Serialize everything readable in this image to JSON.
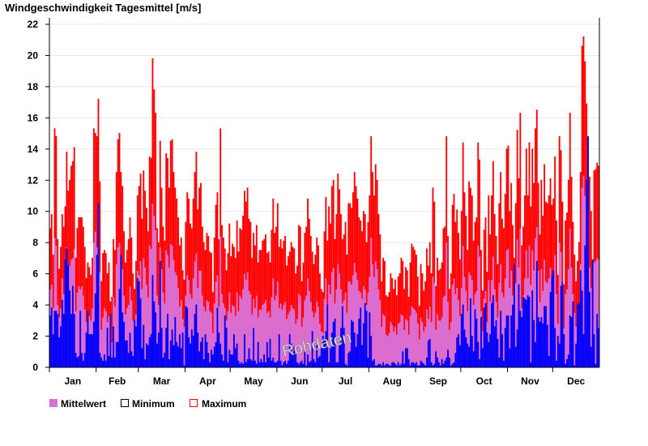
{
  "chart_data": {
    "type": "bar",
    "title": "Windgeschwindigkeit Tagesmittel [m/s]",
    "xlabel": "",
    "ylabel": "m/s",
    "ylim": [
      0,
      22
    ],
    "yticks": [
      "0",
      "2",
      "4",
      "6",
      "8",
      "10",
      "12",
      "14",
      "16",
      "18",
      "20",
      "22"
    ],
    "grid": true,
    "months": [
      "Jan",
      "Feb",
      "Mar",
      "Apr",
      "May",
      "Jun",
      "Jul",
      "Aug",
      "Sep",
      "Oct",
      "Nov",
      "Dec"
    ],
    "month_days": [
      31,
      28,
      31,
      30,
      31,
      30,
      31,
      31,
      30,
      31,
      30,
      31
    ],
    "watermark": "Rohdaten",
    "legend_position": "bottom-left",
    "colors": {
      "mean": "#da70d6",
      "min": "#0000ff",
      "max": "#ff0000",
      "min_legend": "#000000"
    },
    "series": [
      {
        "name": "Maximum",
        "key": "max",
        "values": [
          8.9,
          9.8,
          7.2,
          15.3,
          14.8,
          8.2,
          6.3,
          7.7,
          9.8,
          9.0,
          10.3,
          13.8,
          11.3,
          12.0,
          12.9,
          13.2,
          14.1,
          7.0,
          8.9,
          9.6,
          9.6,
          9.6,
          9.0,
          7.7,
          5.7,
          6.7,
          6.4,
          5.9,
          7.0,
          15.3,
          15.0,
          14.8,
          17.2,
          11.9,
          5.5,
          7.3,
          7.5,
          7.3,
          6.0,
          6.7,
          4.2,
          4.5,
          8.2,
          7.5,
          12.5,
          14.6,
          15.0,
          12.5,
          11.6,
          8.7,
          6.7,
          7.5,
          8.2,
          9.6,
          8.3,
          6.0,
          5.0,
          6.8,
          11.0,
          11.6,
          12.4,
          9.5,
          12.6,
          11.3,
          10.2,
          8.7,
          13.5,
          13.4,
          19.8,
          17.8,
          16.3,
          8.9,
          8.0,
          14.5,
          11.5,
          9.0,
          8.1,
          13.7,
          13.4,
          11.5,
          14.5,
          14.6,
          12.5,
          11.5,
          10.8,
          9.6,
          7.8,
          8.3,
          6.2,
          5.6,
          9.3,
          11.2,
          10.8,
          9.2,
          8.9,
          10.8,
          12.5,
          13.8,
          10.1,
          11.5,
          11.8,
          9.0,
          8.0,
          7.5,
          8.6,
          8.4,
          7.4,
          7.3,
          4.8,
          8.3,
          10.4,
          11.2,
          8.2,
          15.3,
          9.1,
          8.3,
          7.6,
          6.2,
          7.3,
          9.2,
          7.1,
          7.9,
          7.7,
          7.0,
          9.4,
          7.4,
          8.9,
          8.8,
          9.7,
          11.3,
          10.6,
          11.5,
          9.5,
          9.3,
          7.0,
          8.6,
          7.8,
          9.1,
          6.7,
          7.5,
          7.5,
          8.1,
          8.2,
          8.5,
          7.3,
          7.4,
          6.7,
          8.8,
          10.8,
          8.6,
          9.0,
          10.5,
          7.7,
          8.2,
          7.6,
          8.1,
          8.4,
          6.5,
          7.1,
          7.4,
          8.0,
          7.7,
          7.6,
          6.0,
          6.5,
          9.1,
          9.0,
          5.5,
          6.7,
          8.6,
          9.0,
          10.8,
          9.5,
          8.4,
          7.4,
          6.6,
          7.2,
          8.3,
          7.8,
          6.0,
          5.0,
          4.8,
          8.7,
          10.9,
          8.1,
          10.3,
          9.2,
          11.6,
          12.0,
          8.2,
          9.8,
          12.4,
          11.4,
          9.8,
          8.2,
          8.5,
          9.3,
          7.2,
          10.5,
          10.5,
          10.2,
          11.2,
          12.5,
          11.6,
          10.8,
          9.6,
          9.4,
          8.7,
          10.0,
          9.8,
          8.0,
          9.3,
          11.0,
          14.8,
          12.5,
          11.0,
          13.0,
          12.0,
          9.8,
          8.5,
          5.5,
          7.0,
          6.8,
          4.6,
          4.5,
          4.8,
          6.0,
          5.7,
          5.0,
          5.6,
          4.6,
          5.8,
          6.0,
          7.0,
          6.8,
          5.0,
          6.4,
          6.2,
          4.5,
          6.7,
          7.9,
          7.7,
          7.5,
          7.2,
          5.8,
          3.9,
          6.6,
          6.0,
          4.9,
          5.5,
          7.6,
          6.5,
          8.0,
          6.0,
          11.5,
          10.6,
          5.2,
          7.0,
          6.2,
          6.3,
          6.7,
          8.9,
          9.0,
          14.8,
          8.4,
          5.0,
          6.0,
          10.4,
          11.1,
          9.3,
          10.1,
          8.6,
          6.9,
          10.0,
          14.4,
          11.2,
          9.7,
          7.5,
          11.9,
          11.5,
          11.0,
          8.1,
          9.3,
          9.6,
          14.4,
          13.3,
          7.5,
          4.9,
          8.8,
          9.6,
          6.1,
          11.0,
          8.5,
          11.0,
          13.2,
          9.8,
          8.4,
          6.6,
          10.5,
          12.5,
          9.5,
          8.9,
          11.1,
          14.0,
          14.2,
          10.0,
          11.8,
          9.1,
          7.0,
          10.5,
          15.2,
          12.1,
          16.3,
          7.8,
          9.0,
          11.0,
          14.0,
          11.0,
          14.4,
          10.3,
          14.0,
          11.8,
          15.3,
          16.5,
          11.8,
          8.5,
          12.0,
          9.7,
          13.0,
          10.6,
          10.5,
          11.0,
          12.1,
          10.4,
          10.8,
          13.5,
          9.4,
          5.9,
          14.8,
          13.9,
          10.6,
          5.3,
          9.4,
          9.9,
          12.0,
          16.3,
          12.2,
          9.3,
          7.2,
          5.5,
          6.8,
          8.0,
          12.5,
          20.6,
          21.2,
          19.6,
          16.9,
          14.8,
          12.2,
          10.0,
          6.9,
          12.6,
          12.7,
          13.1,
          12.9
        ]
      },
      {
        "name": "Mittelwert",
        "key": "mean",
        "values": [
          5.0,
          5.3,
          3.8,
          8.3,
          7.8,
          4.0,
          3.2,
          3.8,
          5.7,
          4.7,
          5.4,
          7.7,
          6.1,
          6.5,
          6.9,
          7.0,
          7.6,
          3.6,
          4.8,
          5.2,
          5.0,
          5.2,
          4.6,
          3.7,
          2.9,
          3.4,
          3.3,
          3.0,
          3.8,
          8.0,
          8.7,
          7.7,
          9.8,
          6.1,
          2.4,
          3.2,
          3.8,
          3.6,
          2.9,
          3.3,
          1.4,
          1.6,
          4.5,
          3.9,
          6.6,
          7.7,
          8.0,
          6.5,
          6.3,
          4.6,
          3.4,
          3.8,
          4.0,
          5.2,
          4.3,
          3.0,
          2.4,
          3.4,
          6.2,
          5.9,
          6.8,
          5.0,
          7.0,
          6.4,
          5.3,
          4.5,
          7.8,
          7.6,
          10.5,
          9.7,
          8.8,
          4.6,
          4.0,
          7.7,
          6.3,
          4.8,
          4.1,
          7.5,
          7.2,
          6.4,
          7.9,
          7.8,
          6.9,
          6.1,
          5.9,
          5.1,
          3.9,
          4.3,
          3.1,
          2.6,
          4.6,
          5.9,
          5.6,
          4.7,
          4.4,
          5.7,
          6.8,
          7.3,
          5.1,
          6.2,
          6.2,
          4.6,
          3.9,
          3.6,
          4.3,
          4.2,
          3.6,
          3.5,
          2.2,
          4.1,
          5.5,
          5.9,
          3.9,
          8.4,
          4.7,
          4.1,
          3.8,
          3.0,
          3.6,
          4.8,
          3.5,
          4.0,
          3.9,
          3.3,
          4.8,
          3.6,
          4.6,
          4.4,
          5.0,
          6.0,
          5.6,
          6.1,
          4.9,
          4.7,
          3.4,
          4.4,
          3.8,
          4.6,
          3.2,
          3.7,
          3.7,
          4.0,
          4.1,
          4.3,
          3.5,
          3.6,
          3.2,
          4.5,
          5.7,
          4.3,
          4.6,
          5.5,
          3.8,
          4.1,
          3.7,
          4.0,
          4.2,
          3.1,
          3.4,
          3.6,
          4.0,
          3.8,
          3.7,
          2.8,
          3.1,
          4.7,
          4.6,
          2.6,
          3.2,
          4.3,
          4.6,
          5.7,
          4.9,
          4.2,
          3.6,
          3.2,
          3.5,
          4.2,
          3.9,
          2.8,
          2.3,
          2.2,
          4.4,
          5.7,
          4.0,
          5.3,
          4.7,
          6.1,
          6.4,
          4.1,
          5.0,
          6.6,
          6.0,
          5.0,
          4.1,
          4.3,
          4.8,
          3.5,
          5.5,
          5.5,
          5.3,
          5.9,
          6.7,
          6.1,
          5.6,
          4.9,
          4.8,
          4.4,
          5.2,
          5.0,
          4.0,
          4.8,
          5.8,
          8.3,
          6.6,
          5.8,
          6.8,
          6.3,
          5.0,
          4.3,
          2.6,
          3.4,
          3.3,
          2.1,
          2.0,
          2.2,
          2.9,
          2.7,
          2.3,
          2.6,
          2.1,
          2.8,
          2.9,
          3.4,
          3.3,
          2.4,
          3.1,
          3.0,
          2.1,
          3.3,
          3.9,
          3.8,
          3.7,
          3.5,
          2.8,
          1.8,
          3.2,
          2.9,
          2.3,
          2.6,
          3.7,
          3.1,
          3.9,
          2.9,
          5.8,
          5.4,
          2.4,
          3.4,
          3.0,
          3.0,
          3.2,
          4.5,
          4.6,
          8.0,
          4.2,
          2.4,
          2.9,
          5.3,
          5.7,
          4.7,
          5.1,
          4.3,
          3.3,
          5.1,
          7.8,
          5.8,
          4.9,
          3.6,
          6.1,
          5.9,
          5.6,
          4.0,
          4.7,
          4.9,
          7.8,
          7.1,
          3.6,
          2.3,
          4.4,
          4.9,
          2.9,
          5.6,
          4.2,
          5.6,
          7.1,
          5.0,
          4.2,
          3.2,
          5.4,
          6.6,
          4.8,
          4.5,
          5.7,
          7.5,
          7.6,
          5.1,
          6.2,
          4.6,
          3.4,
          5.4,
          8.2,
          6.4,
          8.9,
          3.8,
          4.6,
          5.7,
          7.5,
          5.7,
          7.8,
          5.3,
          7.5,
          6.2,
          8.3,
          9.0,
          6.2,
          4.2,
          6.3,
          4.9,
          6.9,
          5.5,
          5.4,
          5.7,
          6.4,
          5.3,
          5.6,
          7.2,
          4.7,
          2.8,
          8.0,
          7.4,
          5.5,
          2.5,
          4.7,
          5.0,
          6.3,
          8.9,
          6.4,
          4.7,
          3.5,
          2.6,
          3.3,
          4.0,
          6.6,
          11.5,
          12.3,
          11.0,
          9.2,
          8.0,
          6.4,
          5.1,
          3.3,
          6.7,
          6.8,
          7.0,
          6.9
        ]
      },
      {
        "name": "Minimum",
        "key": "min",
        "values": [
          3.3,
          3.8,
          2.1,
          3.6,
          3.6,
          3.4,
          1.9,
          2.6,
          4.3,
          3.4,
          6.9,
          7.6,
          6.5,
          4.9,
          3.4,
          5.2,
          3.4,
          0.9,
          0.6,
          0.7,
          3.6,
          0.9,
          0.4,
          0.9,
          2.2,
          3.6,
          2.1,
          2.1,
          2.1,
          2.9,
          4.7,
          7.2,
          10.5,
          0.9,
          0.6,
          0.4,
          0.8,
          0.4,
          2.5,
          0.7,
          3.4,
          0.6,
          2.6,
          0.6,
          1.6,
          1.6,
          5.0,
          7.2,
          3.5,
          2.9,
          1.7,
          1.7,
          0.9,
          2.2,
          1.0,
          0.7,
          3.0,
          2.6,
          5.7,
          5.5,
          4.4,
          1.2,
          2.7,
          0.5,
          1.5,
          1.4,
          1.9,
          2.1,
          5.9,
          4.2,
          3.5,
          1.5,
          2.2,
          6.8,
          2.5,
          0.6,
          0.9,
          2.5,
          3.4,
          0.5,
          1.7,
          2.4,
          1.4,
          3.2,
          1.6,
          1.3,
          2.1,
          1.2,
          2.2,
          0.1,
          3.9,
          3.8,
          1.9,
          1.5,
          2.4,
          2.0,
          3.4,
          4.0,
          2.2,
          1.0,
          1.6,
          1.9,
          0.5,
          2.1,
          1.6,
          0.9,
          0.3,
          1.1,
          0.8,
          1.3,
          1.6,
          3.8,
          2.2,
          1.5,
          0.8,
          0.4,
          3.3,
          2.5,
          0.3,
          1.1,
          0.8,
          0.8,
          2.1,
          1.2,
          1.5,
          0.4,
          0.2,
          0.3,
          0.2,
          2.1,
          0.3,
          0.5,
          1.2,
          0.5,
          0.4,
          2.5,
          0.4,
          0.2,
          1.6,
          0.3,
          0.5,
          0.3,
          0.8,
          0.3,
          1.6,
          0.6,
          1.8,
          0.4,
          0.6,
          0.3,
          0.3,
          0.4,
          2.1,
          0.4,
          0.1,
          0.3,
          0.4,
          0.2,
          0.4,
          2.1,
          1.5,
          0.8,
          1.3,
          0.8,
          0.3,
          0.2,
          0.3,
          0.4,
          0.2,
          1.2,
          0.1,
          0.8,
          0.3,
          0.4,
          2.3,
          0.5,
          0.3,
          1.4,
          0.6,
          0.7,
          1.2,
          2.0,
          1.8,
          2.3,
          4.0,
          0.3,
          1.2,
          2.2,
          2.9,
          3.1,
          0.3,
          0.3,
          1.4,
          2.5,
          3.9,
          2.5,
          0.2,
          0.1,
          0.9,
          1.0,
          3.0,
          2.9,
          2.2,
          1.3,
          2.1,
          3.1,
          3.8,
          1.4,
          2.8,
          4.1,
          3.6,
          0.6,
          3.5,
          2.0,
          0.4,
          0.5,
          0.1,
          0.1,
          0.2,
          0.2,
          0.1,
          0.3,
          0.1,
          0.2,
          0.2,
          0.1,
          0.1,
          0.3,
          0.3,
          0.2,
          0.1,
          0.3,
          0.1,
          0.2,
          1.0,
          0.2,
          1.2,
          1.2,
          0.5,
          0.1,
          0.3,
          0.3,
          0.2,
          0.3,
          0.1,
          0.1,
          0.4,
          0.3,
          0.2,
          0.1,
          0.6,
          1.7,
          1.8,
          0.3,
          0.1,
          0.2,
          1.0,
          0.6,
          0.3,
          0.1,
          0.5,
          0.2,
          0.4,
          0.6,
          1.1,
          0.6,
          0.1,
          0.2,
          0.3,
          0.9,
          1.9,
          2.1,
          1.4,
          3.4,
          4.0,
          2.4,
          1.9,
          1.5,
          1.3,
          4.4,
          2.0,
          1.0,
          3.7,
          3.1,
          1.6,
          0.5,
          3.2,
          1.2,
          3.8,
          4.1,
          2.2,
          1.6,
          2.1,
          4.1,
          4.6,
          2.6,
          3.0,
          1.8,
          0.6,
          3.6,
          2.1,
          0.4,
          2.5,
          3.3,
          3.3,
          1.2,
          3.3,
          4.0,
          6.6,
          1.3,
          2.4,
          5.3,
          3.6,
          3.2,
          4.5,
          4.4,
          4.3,
          4.6,
          4.5,
          0.3,
          4.9,
          3.0,
          1.6,
          6.8,
          3.2,
          2.9,
          3.2,
          2.8,
          3.9,
          3.9,
          2.7,
          0.7,
          4.8,
          5.9,
          6.2,
          2.5,
          0.4,
          2.0,
          1.5,
          5.2,
          5.5,
          2.1,
          0.2,
          0.5,
          0.8,
          3.3,
          3.2,
          4.2,
          0.1,
          1.5,
          4.0,
          4.1,
          6.2,
          4.9,
          2.1,
          7.8,
          12.0,
          14.8,
          4.8,
          1.3,
          6.9,
          2.1,
          0.2,
          3.4,
          2.5
        ]
      }
    ],
    "legend": [
      "Mittelwert",
      "Minimum",
      "Maximum"
    ]
  }
}
